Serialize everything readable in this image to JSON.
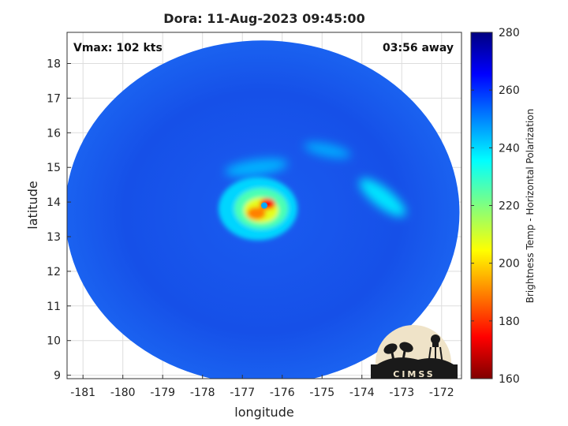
{
  "chart_data": {
    "type": "heatmap",
    "title": "Dora: 11-Aug-2023 09:45:00",
    "annotations": {
      "top_left": "Vmax: 102 kts",
      "top_right": "03:56 away"
    },
    "xlabel": "longitude",
    "ylabel": "latitude",
    "xlim": [
      -181.4,
      -171.5
    ],
    "ylim": [
      8.9,
      18.9
    ],
    "xticks": [
      "-181",
      "-180",
      "-179",
      "-178",
      "-177",
      "-176",
      "-175",
      "-174",
      "-173",
      "-172"
    ],
    "xtick_values": [
      -181,
      -180,
      -179,
      -178,
      -177,
      -176,
      -175,
      -174,
      -173,
      -172
    ],
    "yticks": [
      "9",
      "10",
      "11",
      "12",
      "13",
      "14",
      "15",
      "16",
      "17",
      "18"
    ],
    "ytick_values": [
      9,
      10,
      11,
      12,
      13,
      14,
      15,
      16,
      17,
      18
    ],
    "grid": true,
    "colorbar": {
      "label": "Brightness Temp - Horizontal Polarization",
      "range": [
        160,
        280
      ],
      "ticks": [
        "160",
        "180",
        "200",
        "220",
        "240",
        "260",
        "280"
      ],
      "tick_values": [
        160,
        180,
        200,
        220,
        240,
        260,
        280
      ],
      "colormap": "jet"
    },
    "storm_center": {
      "lon": -176.45,
      "lat": 13.9
    },
    "swath_center": {
      "lon": -176.5,
      "lat": 13.7
    },
    "eye_min_temp": 170,
    "background_temp": 262
  },
  "logo": {
    "text": "CIMSS"
  },
  "colors": {
    "text": "#222222",
    "grid": "#dddddd",
    "axis": "#333333"
  }
}
